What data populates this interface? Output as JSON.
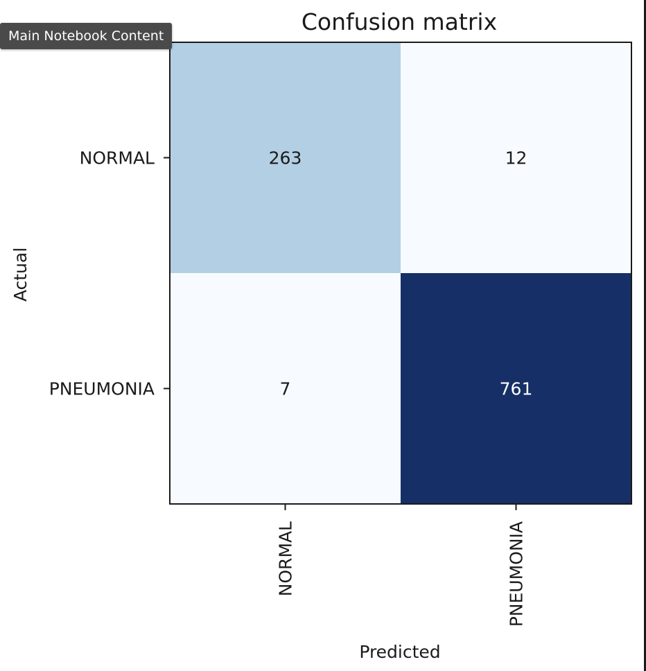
{
  "tooltip": {
    "text": "Main Notebook Content"
  },
  "chart_data": {
    "type": "heatmap",
    "title": "Confusion matrix",
    "xlabel": "Predicted",
    "ylabel": "Actual",
    "x_categories": [
      "NORMAL",
      "PNEUMONIA"
    ],
    "y_categories": [
      "NORMAL",
      "PNEUMONIA"
    ],
    "values": [
      [
        263,
        12
      ],
      [
        7,
        761
      ]
    ],
    "colormap": "Blues",
    "colors": {
      "low": "#f7fbff",
      "mid": "#b3cfe4",
      "high": "#162f66",
      "text_dark": "#1a1a1a",
      "text_light": "#ffffff"
    },
    "grid": false,
    "legend": "none"
  }
}
